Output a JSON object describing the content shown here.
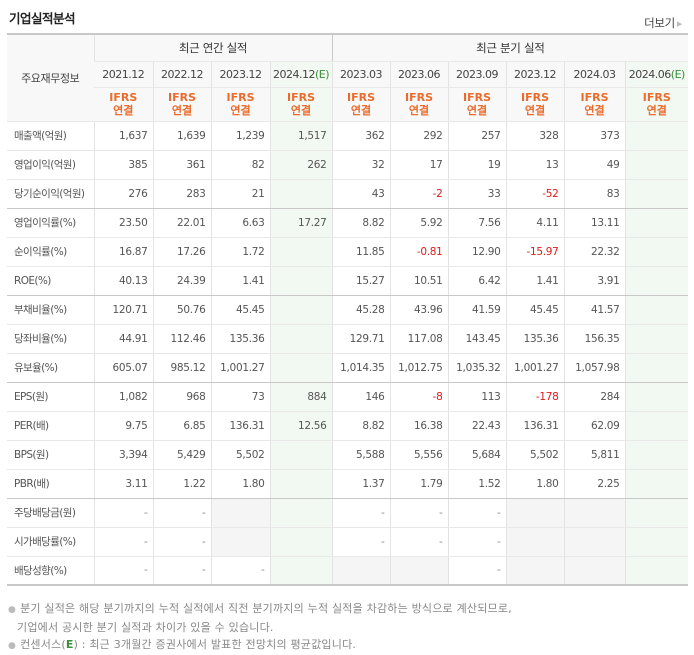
{
  "title": "기업실적분석",
  "more_link": "더보기",
  "header": {
    "label_header": "주요재무정보",
    "groups": [
      {
        "label": "최근 연간 실적"
      },
      {
        "label": "최근 분기 실적"
      }
    ],
    "periods": [
      {
        "label": "2021.12",
        "estimate": ""
      },
      {
        "label": "2022.12",
        "estimate": ""
      },
      {
        "label": "2023.12",
        "estimate": ""
      },
      {
        "label": "2024.12",
        "estimate": "(E)"
      },
      {
        "label": "2023.03",
        "estimate": ""
      },
      {
        "label": "2023.06",
        "estimate": ""
      },
      {
        "label": "2023.09",
        "estimate": ""
      },
      {
        "label": "2023.12",
        "estimate": ""
      },
      {
        "label": "2024.03",
        "estimate": ""
      },
      {
        "label": "2024.06",
        "estimate": "(E)"
      }
    ],
    "basis_line1": "IFRS",
    "basis_line2": "연결"
  },
  "rows": [
    {
      "label": "매출액(억원)",
      "values": [
        "1,637",
        "1,639",
        "1,239",
        "1,517",
        "362",
        "292",
        "257",
        "328",
        "373",
        ""
      ]
    },
    {
      "label": "영업이익(억원)",
      "values": [
        "385",
        "361",
        "82",
        "262",
        "32",
        "17",
        "19",
        "13",
        "49",
        ""
      ]
    },
    {
      "label": "당기순이익(억원)",
      "values": [
        "276",
        "283",
        "21",
        "",
        "43",
        "-2",
        "33",
        "-52",
        "83",
        ""
      ]
    },
    {
      "label": "영업이익률(%)",
      "values": [
        "23.50",
        "22.01",
        "6.63",
        "17.27",
        "8.82",
        "5.92",
        "7.56",
        "4.11",
        "13.11",
        ""
      ]
    },
    {
      "label": "순이익률(%)",
      "values": [
        "16.87",
        "17.26",
        "1.72",
        "",
        "11.85",
        "-0.81",
        "12.90",
        "-15.97",
        "22.32",
        ""
      ]
    },
    {
      "label": "ROE(%)",
      "values": [
        "40.13",
        "24.39",
        "1.41",
        "",
        "15.27",
        "10.51",
        "6.42",
        "1.41",
        "3.91",
        ""
      ]
    },
    {
      "label": "부채비율(%)",
      "values": [
        "120.71",
        "50.76",
        "45.45",
        "",
        "45.28",
        "43.96",
        "41.59",
        "45.45",
        "41.57",
        ""
      ]
    },
    {
      "label": "당좌비율(%)",
      "values": [
        "44.91",
        "112.46",
        "135.36",
        "",
        "129.71",
        "117.08",
        "143.45",
        "135.36",
        "156.35",
        ""
      ]
    },
    {
      "label": "유보율(%)",
      "values": [
        "605.07",
        "985.12",
        "1,001.27",
        "",
        "1,014.35",
        "1,012.75",
        "1,035.32",
        "1,001.27",
        "1,057.98",
        ""
      ]
    },
    {
      "label": "EPS(원)",
      "values": [
        "1,082",
        "968",
        "73",
        "884",
        "146",
        "-8",
        "113",
        "-178",
        "284",
        ""
      ]
    },
    {
      "label": "PER(배)",
      "values": [
        "9.75",
        "6.85",
        "136.31",
        "12.56",
        "8.82",
        "16.38",
        "22.43",
        "136.31",
        "62.09",
        ""
      ]
    },
    {
      "label": "BPS(원)",
      "values": [
        "3,394",
        "5,429",
        "5,502",
        "",
        "5,588",
        "5,556",
        "5,684",
        "5,502",
        "5,811",
        ""
      ]
    },
    {
      "label": "PBR(배)",
      "values": [
        "3.11",
        "1.22",
        "1.80",
        "",
        "1.37",
        "1.79",
        "1.52",
        "1.80",
        "2.25",
        ""
      ]
    },
    {
      "label": "주당배당금(원)",
      "values": [
        "-",
        "-",
        "",
        "",
        "-",
        "-",
        "-",
        "",
        "",
        ""
      ]
    },
    {
      "label": "시가배당률(%)",
      "values": [
        "-",
        "-",
        "",
        "",
        "-",
        "-",
        "-",
        "",
        "",
        ""
      ]
    },
    {
      "label": "배당성향(%)",
      "values": [
        "-",
        "-",
        "-",
        "",
        "",
        "",
        "-",
        "",
        "",
        ""
      ]
    }
  ],
  "notes": {
    "line1": "분기 실적은 해당 분기까지의 누적 실적에서 직전 분기까지의 누적 실적을 차감하는 방식으로 계산되므로,",
    "line2": "기업에서 공시한 분기 실적과 차이가 있을 수 있습니다.",
    "line3_prefix": "컨센서스(",
    "line3_e": "E",
    "line3_suffix": ") : 최근 3개월간 증권사에서 발표한 전망치의 평균값입니다."
  },
  "colors": {
    "ifrs_orange": "#ea6b2c",
    "estimate_green": "#3a8f3a",
    "estimate_bg": "#f2f8f2",
    "negative_red": "#e01b1b",
    "na_bg": "#f5f5f5"
  }
}
